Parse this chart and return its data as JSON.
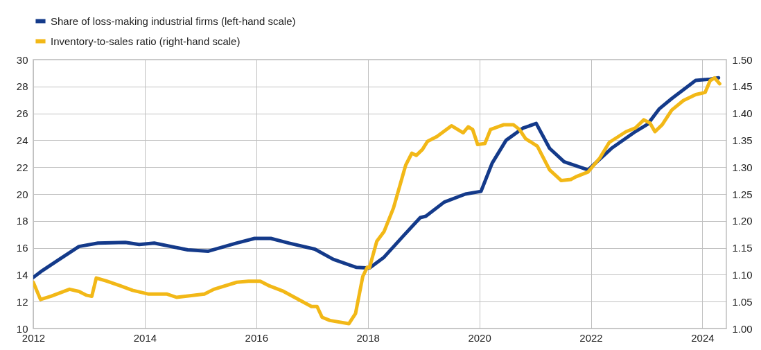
{
  "chart_data": {
    "type": "line",
    "legend": "top left",
    "grid": true,
    "line_style": "solid",
    "xlim": [
      2012,
      2024.43
    ],
    "xticks": [
      2012,
      2014,
      2016,
      2018,
      2020,
      2022,
      2024
    ],
    "ylim": [
      10,
      30
    ],
    "yticks": [
      10,
      12,
      14,
      16,
      18,
      20,
      22,
      24,
      26,
      28,
      30
    ],
    "y2lim": [
      1.0,
      1.5
    ],
    "y2ticks": [
      {
        "value": 1.0,
        "label": "1.00"
      },
      1.05,
      {
        "value": 1.1,
        "label": "1.10"
      },
      1.15,
      {
        "value": 1.2,
        "label": "1.20"
      },
      1.25,
      {
        "value": 1.3,
        "label": "1.30"
      },
      1.35,
      {
        "value": 1.4,
        "label": "1.40"
      },
      1.45,
      {
        "value": 1.5,
        "label": "1.50"
      }
    ],
    "series": [
      {
        "name": "Share of loss-making industrial firms (left-hand scale)",
        "color": "#143a8a",
        "x": [
          2012.0,
          2012.16,
          2012.45,
          2012.82,
          2013.16,
          2013.65,
          2013.9,
          2014.17,
          2014.77,
          2015.14,
          2015.64,
          2015.97,
          2016.26,
          2016.59,
          2017.05,
          2017.38,
          2017.79,
          2018.03,
          2018.29,
          2018.64,
          2018.94,
          2019.04,
          2019.37,
          2019.75,
          2020.03,
          2020.23,
          2020.48,
          2020.78,
          2021.02,
          2021.26,
          2021.52,
          2021.95,
          2022.37,
          2022.8,
          2023.02,
          2023.23,
          2023.45,
          2023.88,
          2024.14,
          2024.29
        ],
        "values": [
          13.8,
          14.3,
          15.1,
          16.1,
          16.35,
          16.4,
          16.25,
          16.35,
          15.85,
          15.75,
          16.35,
          16.7,
          16.7,
          16.35,
          15.9,
          15.15,
          14.55,
          14.5,
          15.3,
          16.9,
          18.25,
          18.35,
          19.4,
          20.0,
          20.2,
          22.3,
          24.0,
          24.9,
          25.25,
          23.4,
          22.4,
          21.8,
          23.4,
          24.65,
          25.2,
          26.35,
          27.1,
          28.45,
          28.55,
          28.65
        ]
      },
      {
        "name": "Inventory-to-sales ratio (right-hand scale)",
        "color": "#f2b817",
        "axis": "y2",
        "x": [
          2012.0,
          2012.13,
          2012.32,
          2012.65,
          2012.82,
          2012.95,
          2013.05,
          2013.13,
          2013.32,
          2013.57,
          2013.78,
          2014.07,
          2014.4,
          2014.57,
          2015.07,
          2015.24,
          2015.65,
          2015.86,
          2016.07,
          2016.24,
          2016.49,
          2016.99,
          2017.09,
          2017.18,
          2017.32,
          2017.66,
          2017.78,
          2017.91,
          2017.99,
          2018.03,
          2018.16,
          2018.29,
          2018.46,
          2018.68,
          2018.79,
          2018.87,
          2018.98,
          2019.07,
          2019.24,
          2019.5,
          2019.71,
          2019.8,
          2019.88,
          2019.97,
          2020.1,
          2020.2,
          2020.44,
          2020.61,
          2020.72,
          2020.83,
          2021.04,
          2021.26,
          2021.47,
          2021.64,
          2021.73,
          2021.95,
          2022.16,
          2022.33,
          2022.63,
          2022.8,
          2022.95,
          2023.06,
          2023.15,
          2023.28,
          2023.45,
          2023.66,
          2023.88,
          2024.05,
          2024.14,
          2024.22,
          2024.31
        ],
        "values": [
          1.086,
          1.054,
          1.06,
          1.073,
          1.069,
          1.062,
          1.06,
          1.094,
          1.088,
          1.079,
          1.071,
          1.064,
          1.064,
          1.058,
          1.064,
          1.073,
          1.086,
          1.088,
          1.088,
          1.079,
          1.069,
          1.041,
          1.041,
          1.021,
          1.015,
          1.009,
          1.028,
          1.097,
          1.114,
          1.113,
          1.162,
          1.18,
          1.224,
          1.304,
          1.326,
          1.322,
          1.333,
          1.348,
          1.357,
          1.377,
          1.364,
          1.375,
          1.37,
          1.342,
          1.344,
          1.37,
          1.379,
          1.379,
          1.37,
          1.353,
          1.339,
          1.295,
          1.275,
          1.277,
          1.282,
          1.291,
          1.317,
          1.346,
          1.366,
          1.373,
          1.388,
          1.382,
          1.366,
          1.379,
          1.406,
          1.424,
          1.435,
          1.439,
          1.461,
          1.466,
          1.455
        ]
      }
    ]
  }
}
